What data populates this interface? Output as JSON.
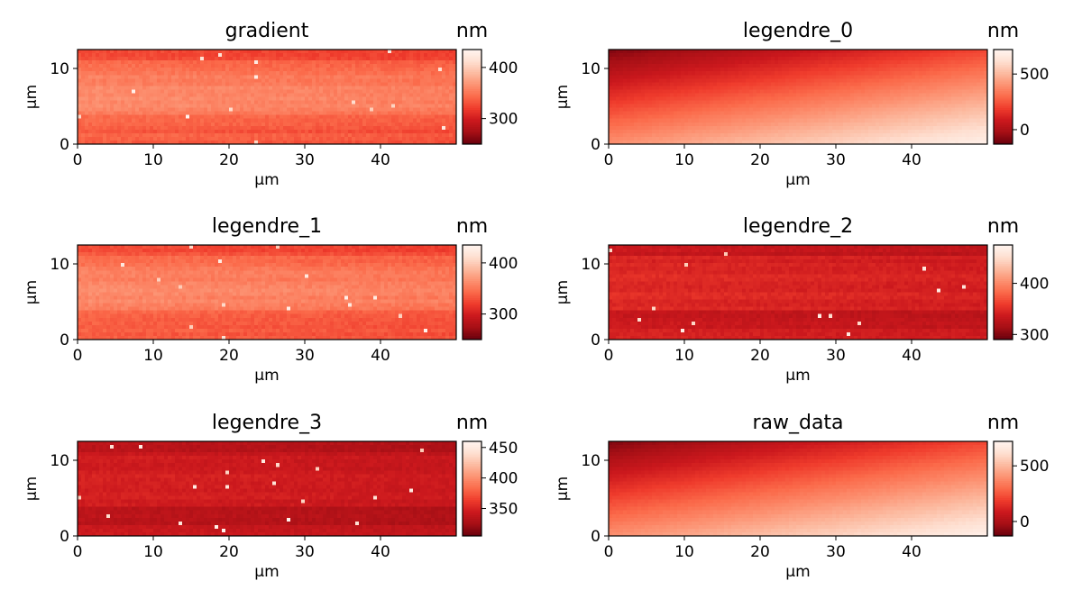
{
  "chart_data": [
    {
      "type": "heatmap",
      "title": "gradient",
      "xlabel": "µm",
      "ylabel": "µm",
      "xlim": [
        0,
        50
      ],
      "ylim": [
        0,
        12.5
      ],
      "xticks": [
        0,
        10,
        20,
        30,
        40
      ],
      "yticks": [
        0,
        10
      ],
      "colorbar": {
        "label": "nm",
        "range": [
          250,
          435
        ],
        "ticks": [
          300,
          400
        ]
      },
      "colormap": [
        "#67000d",
        "#a50f15",
        "#cb181d",
        "#ef3b2c",
        "#fb6a4a",
        "#fc9272",
        "#fcbba1",
        "#fee0d2",
        "#fff5f0"
      ],
      "pattern": "horizontal-bands",
      "levels": {
        "base": 0.45,
        "band_amplitude": 0.15,
        "noise": 0.06
      }
    },
    {
      "type": "heatmap",
      "title": "legendre_0",
      "xlabel": "µm",
      "ylabel": "µm",
      "xlim": [
        0,
        50
      ],
      "ylim": [
        0,
        12.5
      ],
      "xticks": [
        0,
        10,
        20,
        30,
        40
      ],
      "yticks": [
        0,
        10
      ],
      "colorbar": {
        "label": "nm",
        "range": [
          -130,
          720
        ],
        "ticks": [
          0,
          500
        ]
      },
      "colormap": [
        "#67000d",
        "#a50f15",
        "#cb181d",
        "#ef3b2c",
        "#fb6a4a",
        "#fc9272",
        "#fcbba1",
        "#fee0d2",
        "#fff5f0"
      ],
      "pattern": "diagonal-gradient",
      "levels": {
        "min": 0.05,
        "max": 0.97,
        "noise": 0.015
      }
    },
    {
      "type": "heatmap",
      "title": "legendre_1",
      "xlabel": "µm",
      "ylabel": "µm",
      "xlim": [
        0,
        50
      ],
      "ylim": [
        0,
        12.5
      ],
      "xticks": [
        0,
        10,
        20,
        30,
        40
      ],
      "yticks": [
        0,
        10
      ],
      "colorbar": {
        "label": "nm",
        "range": [
          250,
          435
        ],
        "ticks": [
          300,
          400
        ]
      },
      "colormap": [
        "#67000d",
        "#a50f15",
        "#cb181d",
        "#ef3b2c",
        "#fb6a4a",
        "#fc9272",
        "#fcbba1",
        "#fee0d2",
        "#fff5f0"
      ],
      "pattern": "horizontal-bands",
      "levels": {
        "base": 0.45,
        "band_amplitude": 0.15,
        "noise": 0.06
      }
    },
    {
      "type": "heatmap",
      "title": "legendre_2",
      "xlabel": "µm",
      "ylabel": "µm",
      "xlim": [
        0,
        50
      ],
      "ylim": [
        0,
        12.5
      ],
      "xticks": [
        0,
        10,
        20,
        30,
        40
      ],
      "yticks": [
        0,
        10
      ],
      "colorbar": {
        "label": "nm",
        "range": [
          290,
          475
        ],
        "ticks": [
          300,
          400
        ]
      },
      "colormap": [
        "#67000d",
        "#a50f15",
        "#cb181d",
        "#ef3b2c",
        "#fb6a4a",
        "#fc9272",
        "#fcbba1",
        "#fee0d2",
        "#fff5f0"
      ],
      "pattern": "flat-dark",
      "levels": {
        "base": 0.28,
        "band_amplitude": 0.04,
        "noise": 0.05
      }
    },
    {
      "type": "heatmap",
      "title": "legendre_3",
      "xlabel": "µm",
      "ylabel": "µm",
      "xlim": [
        0,
        50
      ],
      "ylim": [
        0,
        12.5
      ],
      "xticks": [
        0,
        10,
        20,
        30,
        40
      ],
      "yticks": [
        0,
        10
      ],
      "colorbar": {
        "label": "nm",
        "range": [
          305,
          460
        ],
        "ticks": [
          350,
          400,
          450
        ]
      },
      "colormap": [
        "#67000d",
        "#a50f15",
        "#cb181d",
        "#ef3b2c",
        "#fb6a4a",
        "#fc9272",
        "#fcbba1",
        "#fee0d2",
        "#fff5f0"
      ],
      "pattern": "flat-dark",
      "levels": {
        "base": 0.24,
        "band_amplitude": 0.04,
        "noise": 0.05
      }
    },
    {
      "type": "heatmap",
      "title": "raw_data",
      "xlabel": "µm",
      "ylabel": "µm",
      "xlim": [
        0,
        50
      ],
      "ylim": [
        0,
        12.5
      ],
      "xticks": [
        0,
        10,
        20,
        30,
        40
      ],
      "yticks": [
        0,
        10
      ],
      "colorbar": {
        "label": "nm",
        "range": [
          -130,
          720
        ],
        "ticks": [
          0,
          500
        ]
      },
      "colormap": [
        "#67000d",
        "#a50f15",
        "#cb181d",
        "#ef3b2c",
        "#fb6a4a",
        "#fc9272",
        "#fcbba1",
        "#fee0d2",
        "#fff5f0"
      ],
      "pattern": "diagonal-gradient",
      "levels": {
        "min": 0.05,
        "max": 0.97,
        "noise": 0.015
      }
    }
  ]
}
